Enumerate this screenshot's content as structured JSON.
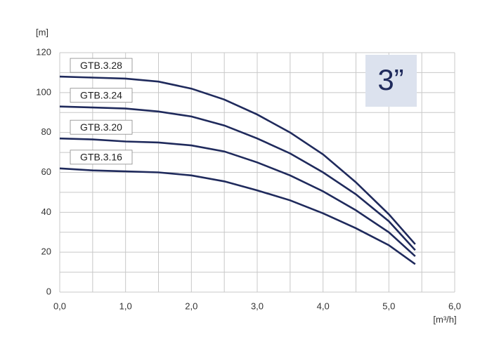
{
  "chart_data": {
    "type": "line",
    "y_label": "[m]",
    "x_label": "[m³/h]",
    "badge": "3”",
    "x": [
      0,
      0.5,
      1.0,
      1.5,
      2.0,
      2.5,
      3.0,
      3.5,
      4.0,
      4.5,
      5.0,
      5.4
    ],
    "series": [
      {
        "name": "GTB.3.28",
        "color": "#1f2a5c",
        "values": [
          108,
          107.5,
          107,
          105.5,
          102,
          96.5,
          89,
          80,
          69,
          55,
          39,
          24
        ]
      },
      {
        "name": "GTB.3.24",
        "color": "#1f2a5c",
        "values": [
          93,
          92.5,
          92,
          90.5,
          88,
          83.5,
          77,
          69.5,
          60,
          49,
          35.5,
          21
        ]
      },
      {
        "name": "GTB.3.20",
        "color": "#1f2a5c",
        "values": [
          77,
          76.5,
          75.5,
          75,
          73.5,
          70.5,
          65,
          58.5,
          50.5,
          41,
          30,
          18
        ]
      },
      {
        "name": "GTB.3.16",
        "color": "#1f2a5c",
        "values": [
          62,
          61,
          60.5,
          60,
          58.5,
          55.5,
          51,
          46,
          39.5,
          32,
          23.5,
          14
        ]
      }
    ],
    "xlim": [
      0,
      6
    ],
    "ylim": [
      0,
      120
    ],
    "xticks": [
      {
        "value": 0,
        "label": "0,0"
      },
      {
        "value": 1,
        "label": "1,0"
      },
      {
        "value": 2,
        "label": "2,0"
      },
      {
        "value": 3,
        "label": "3,0"
      },
      {
        "value": 4,
        "label": "4,0"
      },
      {
        "value": 5,
        "label": "5,0"
      },
      {
        "value": 6,
        "label": "6,0"
      }
    ],
    "yticks": [
      0,
      20,
      40,
      60,
      80,
      100,
      120
    ],
    "grid": true
  }
}
